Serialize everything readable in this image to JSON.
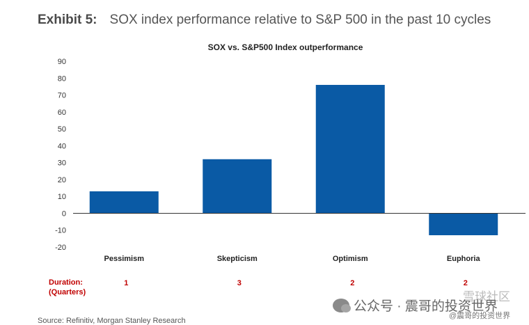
{
  "exhibit": {
    "label": "Exhibit 5:",
    "title": "SOX index performance relative to S&P 500 in the past 10 cycles"
  },
  "chart_data": {
    "type": "bar",
    "title": "SOX vs. S&P500 Index outperformance",
    "categories": [
      "Pessimism",
      "Skepticism",
      "Optimism",
      "Euphoria"
    ],
    "values": [
      13,
      32,
      76,
      -13
    ],
    "ylim": [
      -20,
      90
    ],
    "yticks": [
      "90",
      "80",
      "70",
      "60",
      "50",
      "40",
      "30",
      "20",
      "10",
      "0",
      "-10",
      "-20"
    ],
    "xlabel": "",
    "ylabel": "",
    "bar_color": "#0a5aa5",
    "grid": false,
    "durations": [
      "1",
      "3",
      "2",
      "2"
    ]
  },
  "duration": {
    "label_line1": "Duration:",
    "label_line2": "(Quarters)",
    "color": "#c00000"
  },
  "source": "Source: Refinitiv, Morgan Stanley Research",
  "watermark": {
    "main": "公众号 · 震哥的投资世界",
    "sub": "@震哥的投资世界",
    "top": "雪球社区"
  }
}
